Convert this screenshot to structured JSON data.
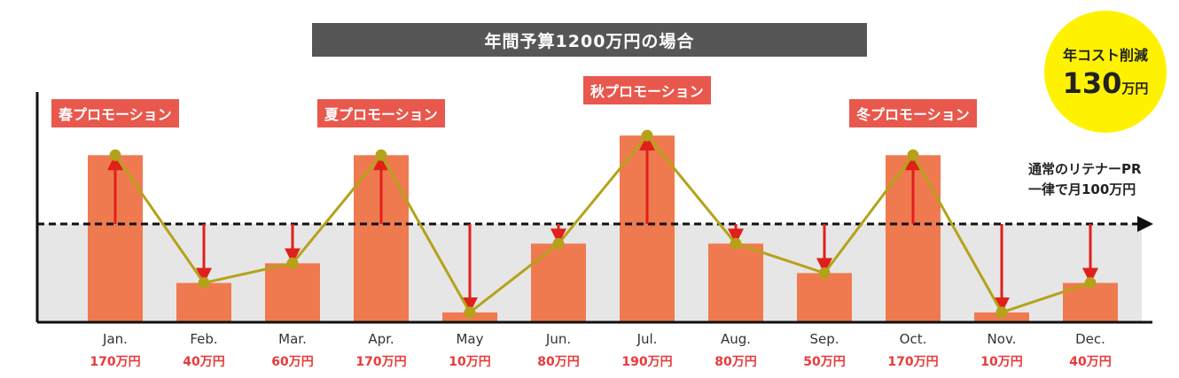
{
  "header": {
    "title": "年間予算1200万円の場合"
  },
  "badge": {
    "line1": "年コスト削減",
    "number": "130",
    "unit": "万円"
  },
  "retainer": {
    "line1": "通常のリテナーPR",
    "line2": "一律で月100万円"
  },
  "promotions": [
    {
      "label": "春プロモーション",
      "month_index": 0
    },
    {
      "label": "夏プロモーション",
      "month_index": 3
    },
    {
      "label": "秋プロモーション",
      "month_index": 6
    },
    {
      "label": "冬プロモーション",
      "month_index": 9
    }
  ],
  "value_labels": [
    "170万円",
    "40万円",
    "60万円",
    "170万円",
    "10万円",
    "80万円",
    "190万円",
    "80万円",
    "50万円",
    "170万円",
    "10万円",
    "40万円"
  ],
  "colors": {
    "bar": "#f07a4f",
    "line": "#b5a21a",
    "arrow": "#e0201b",
    "promo": "#e8584d",
    "band": "#e6e6e6",
    "badge": "#fff200",
    "title_bar": "#565656"
  },
  "chart_data": {
    "type": "bar",
    "categories": [
      "Jan.",
      "Feb.",
      "Mar.",
      "Apr.",
      "May",
      "Jun.",
      "Jul.",
      "Aug.",
      "Sep.",
      "Oct.",
      "Nov.",
      "Dec."
    ],
    "values": [
      170,
      40,
      60,
      170,
      10,
      80,
      190,
      80,
      50,
      170,
      10,
      40
    ],
    "baseline": 100,
    "unit": "万円",
    "title": "年間予算1200万円の場合",
    "ylim": [
      0,
      200
    ],
    "grid": false
  }
}
